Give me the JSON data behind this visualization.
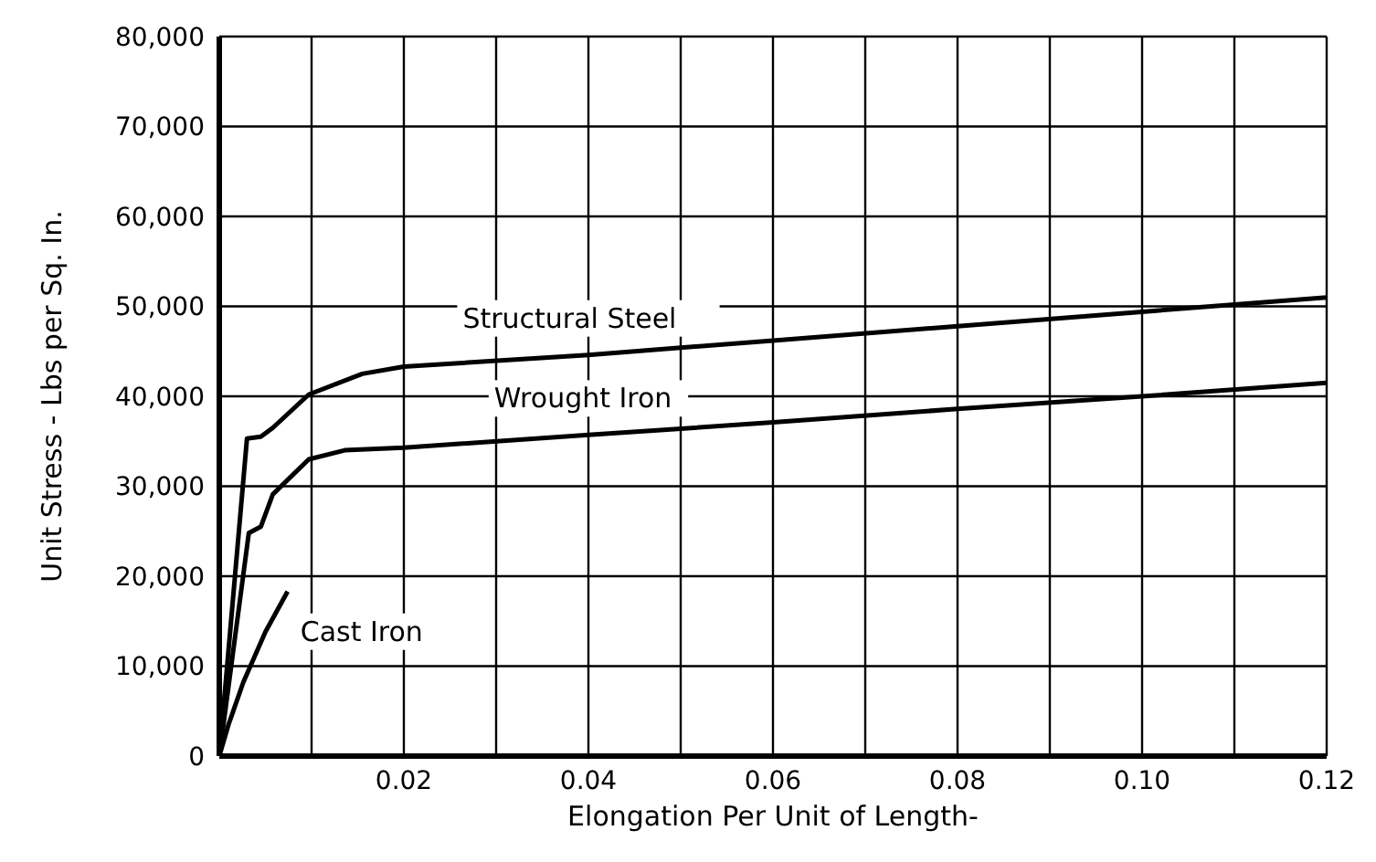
{
  "chart_data": {
    "type": "line",
    "xlabel": "Elongation Per Unit of Length-",
    "ylabel": "Unit Stress - Lbs per Sq. In.",
    "series": [
      {
        "name": "Structural Steel",
        "color": "#000000",
        "x": [
          0,
          0.003,
          0.0045,
          0.0058,
          0.0097,
          0.0155,
          0.02,
          0.04,
          0.06,
          0.08,
          0.1,
          0.12
        ],
        "values": [
          0,
          35300,
          35500,
          36500,
          40200,
          42500,
          43300,
          44600,
          46200,
          47800,
          49400,
          51000
        ]
      },
      {
        "name": "Wrought Iron",
        "color": "#000000",
        "x": [
          0,
          0.0032,
          0.0045,
          0.0058,
          0.0097,
          0.0136,
          0.02,
          0.04,
          0.06,
          0.08,
          0.1,
          0.12
        ],
        "values": [
          0,
          24800,
          25500,
          29100,
          33000,
          34000,
          34300,
          35700,
          37100,
          38600,
          40000,
          41500
        ]
      },
      {
        "name": "Cast Iron",
        "color": "#000000",
        "x": [
          0,
          0.001,
          0.0026,
          0.005,
          0.0074
        ],
        "values": [
          0,
          3500,
          8200,
          13800,
          18300
        ]
      }
    ],
    "xlim": [
      0,
      0.12
    ],
    "xticks": [
      {
        "value": 0,
        "label": null
      },
      {
        "value": 0.01,
        "label": null
      },
      0.02,
      {
        "value": 0.03,
        "label": null
      },
      0.04,
      {
        "value": 0.05,
        "label": null
      },
      0.06,
      {
        "value": 0.07,
        "label": null
      },
      0.08,
      {
        "value": 0.09,
        "label": null
      },
      {
        "value": 0.1,
        "label": "0.10"
      },
      {
        "value": 0.11,
        "label": null
      },
      0.12
    ],
    "ylim": [
      0,
      80000
    ],
    "yticks": [
      0,
      {
        "value": 10000,
        "label": "10,000"
      },
      {
        "value": 20000,
        "label": "20,000"
      },
      {
        "value": 30000,
        "label": "30,000"
      },
      {
        "value": 40000,
        "label": "40,000"
      },
      {
        "value": 50000,
        "label": "50,000"
      },
      {
        "value": 60000,
        "label": "60,000"
      },
      {
        "value": 70000,
        "label": "70,000"
      },
      {
        "value": 80000,
        "label": "80,000"
      }
    ],
    "grid": true,
    "legend": false,
    "marker": "none",
    "line_style": "solid"
  }
}
